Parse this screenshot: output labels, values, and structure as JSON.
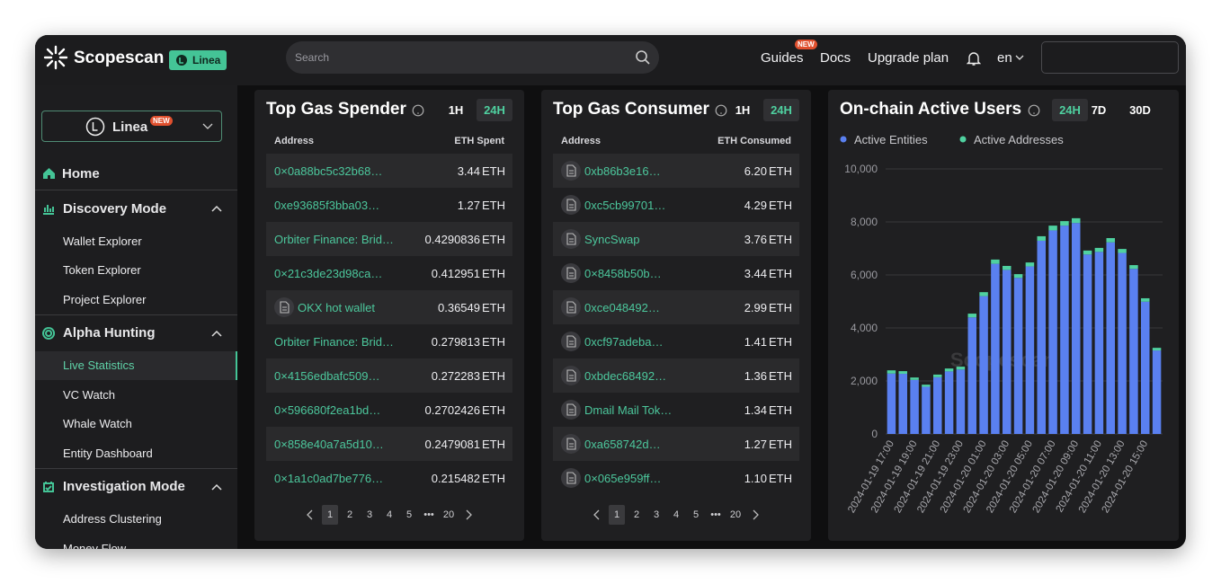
{
  "header": {
    "brand": "Scopescan",
    "chain_badge": "Linea",
    "search_placeholder": "Search",
    "nav": [
      {
        "label": "Guides",
        "badge": "NEW"
      },
      {
        "label": "Docs"
      },
      {
        "label": "Upgrade plan"
      }
    ],
    "language": "en"
  },
  "sidebar": {
    "chain": "Linea",
    "chain_badge": "NEW",
    "home": "Home",
    "sections": [
      {
        "title": "Discovery Mode",
        "items": [
          "Wallet Explorer",
          "Token Explorer",
          "Project Explorer"
        ]
      },
      {
        "title": "Alpha Hunting",
        "items": [
          "Live Statistics",
          "VC Watch",
          "Whale Watch",
          "Entity Dashboard"
        ]
      },
      {
        "title": "Investigation Mode",
        "items": [
          "Address Clustering",
          "Money Flow"
        ]
      }
    ]
  },
  "panels": [
    {
      "title": "Top Gas Spender",
      "ranges": [
        "1H",
        "24H"
      ],
      "columns": [
        "Address",
        "ETH Spent"
      ],
      "rows": [
        {
          "address": "0×0a88bc5c32b68…",
          "amount": "3.44",
          "unit": "ETH"
        },
        {
          "address": "0xe93685f3bba03…",
          "amount": "1.27",
          "unit": "ETH"
        },
        {
          "address": "Orbiter Finance: Brid…",
          "amount": "0.4290836",
          "unit": "ETH"
        },
        {
          "address": "0×21c3de23d98ca…",
          "amount": "0.412951",
          "unit": "ETH"
        },
        {
          "address": "OKX hot wallet",
          "amount": "0.36549",
          "unit": "ETH"
        },
        {
          "address": "Orbiter Finance: Brid…",
          "amount": "0.279813",
          "unit": "ETH"
        },
        {
          "address": "0×4156edbafc509…",
          "amount": "0.272283",
          "unit": "ETH"
        },
        {
          "address": "0×596680f2ea1bd…",
          "amount": "0.2702426",
          "unit": "ETH"
        },
        {
          "address": "0×858e40a7a5d10…",
          "amount": "0.2479081",
          "unit": "ETH"
        },
        {
          "address": "0×1a1c0ad7be776…",
          "amount": "0.215482",
          "unit": "ETH"
        }
      ],
      "pages": [
        "1",
        "2",
        "3",
        "4",
        "5",
        "•••",
        "20"
      ]
    },
    {
      "title": "Top Gas Consumer",
      "ranges": [
        "1H",
        "24H"
      ],
      "columns": [
        "Address",
        "ETH Consumed"
      ],
      "rows": [
        {
          "address": "0xb86b3e16…",
          "amount": "6.20",
          "unit": "ETH"
        },
        {
          "address": "0xc5cb99701…",
          "amount": "4.29",
          "unit": "ETH"
        },
        {
          "address": "SyncSwap",
          "amount": "3.76",
          "unit": "ETH"
        },
        {
          "address": "0×8458b50b…",
          "amount": "3.44",
          "unit": "ETH"
        },
        {
          "address": "0xce048492…",
          "amount": "2.99",
          "unit": "ETH"
        },
        {
          "address": "0xcf97adeba…",
          "amount": "1.41",
          "unit": "ETH"
        },
        {
          "address": "0xbdec68492…",
          "amount": "1.36",
          "unit": "ETH"
        },
        {
          "address": "Dmail Mail Tok…",
          "amount": "1.34",
          "unit": "ETH"
        },
        {
          "address": "0xa658742d…",
          "amount": "1.27",
          "unit": "ETH"
        },
        {
          "address": "0×065e959ff…",
          "amount": "1.10",
          "unit": "ETH"
        }
      ],
      "pages": [
        "1",
        "2",
        "3",
        "4",
        "5",
        "•••",
        "20"
      ]
    }
  ],
  "chart_data": {
    "type": "bar",
    "stacked": true,
    "title": "On-chain Active Users",
    "ranges": [
      "24H",
      "7D",
      "30D"
    ],
    "watermark": "Scopescan",
    "categories": [
      "2024-01-19 17:00",
      null,
      "2024-01-19 19:00",
      null,
      "2024-01-19 21:00",
      null,
      "2024-01-19 23:00",
      null,
      "2024-01-20 01:00",
      null,
      "2024-01-20 03:00",
      null,
      "2024-01-20 05:00",
      null,
      "2024-01-20 07:00",
      null,
      "2024-01-20 09:00",
      null,
      "2024-01-20 11:00",
      null,
      "2024-01-20 13:00",
      null,
      "2024-01-20 15:00",
      null
    ],
    "series": [
      {
        "name": "Active Entities",
        "color": "#5a80f0",
        "values": [
          2280,
          2270,
          2040,
          1780,
          2140,
          2360,
          2430,
          4400,
          5200,
          6420,
          6190,
          5890,
          6320,
          7290,
          7680,
          7860,
          7960,
          6770,
          6870,
          7230,
          6830,
          6230,
          4990,
          3150
        ]
      },
      {
        "name": "Active Addresses",
        "color": "#4fd1a0",
        "values": [
          120,
          100,
          90,
          80,
          100,
          110,
          110,
          140,
          150,
          160,
          150,
          140,
          150,
          170,
          180,
          170,
          180,
          150,
          150,
          160,
          150,
          140,
          130,
          100
        ]
      }
    ],
    "ylim": [
      0,
      10000
    ],
    "yticks": [
      0,
      {
        "value": 2000,
        "label": "2,000"
      },
      {
        "value": 4000,
        "label": "4,000"
      },
      {
        "value": 6000,
        "label": "6,000"
      },
      {
        "value": 8000,
        "label": "8,000"
      },
      {
        "value": 10000,
        "label": "10,000"
      }
    ],
    "grid": true,
    "legend": "top-left"
  }
}
